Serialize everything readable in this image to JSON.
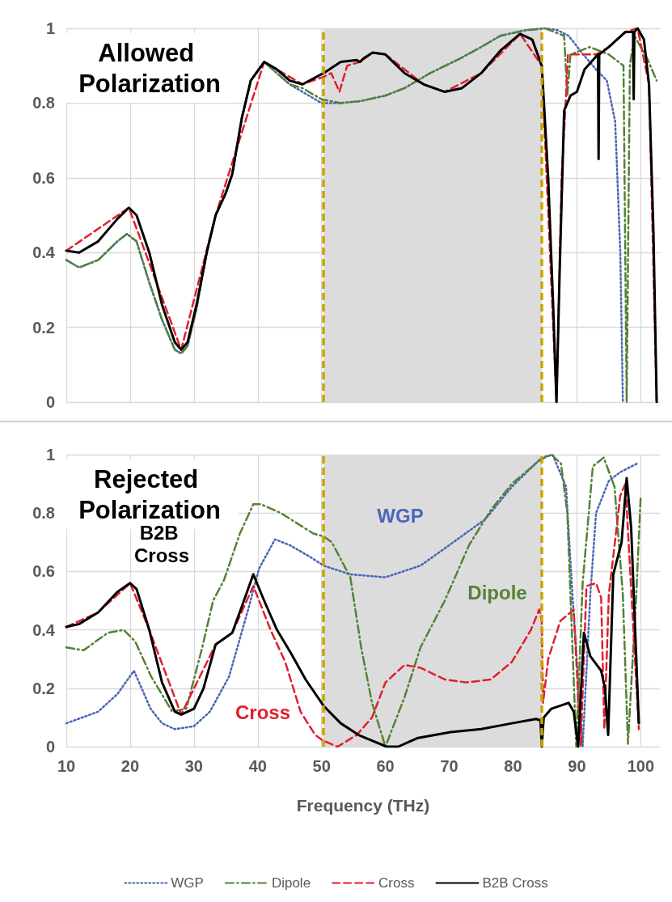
{
  "chart_data": [
    {
      "type": "line",
      "title": "Allowed Polarization",
      "xlim": [
        10,
        103
      ],
      "xticks": [
        10,
        20,
        30,
        40,
        50,
        60,
        70,
        80,
        90,
        100
      ],
      "ylim": [
        0,
        1
      ],
      "yticks": [
        0,
        0.2,
        0.4,
        0.6,
        0.8,
        1
      ],
      "tick_labels": "y",
      "grid": true,
      "legend": false,
      "marker": "none",
      "bands": [
        {
          "axis": "x",
          "from": 50.3,
          "to": 84.5,
          "color": "#dcdcdc"
        }
      ],
      "ref_lines": [
        {
          "axis": "x",
          "value": 50.3,
          "color": "#c9a400",
          "line_style": "dashed"
        },
        {
          "axis": "x",
          "value": 84.5,
          "color": "#c9a400",
          "line_style": "dashed"
        }
      ],
      "series": [
        {
          "name": "WGP",
          "color": "#4a66b8",
          "line_style": "dotted",
          "x": [
            10,
            12,
            15,
            18,
            19.5,
            21,
            23,
            25,
            27,
            28,
            29,
            30.4,
            32,
            33.4,
            35,
            36,
            37.5,
            38.9,
            41,
            43,
            45,
            47,
            50,
            53,
            56,
            60,
            63,
            67,
            71.8,
            75,
            78,
            82,
            85,
            87,
            88.7,
            91,
            93,
            94.7,
            96,
            96.8,
            97.2
          ],
          "values": [
            0.38,
            0.36,
            0.38,
            0.43,
            0.45,
            0.43,
            0.32,
            0.22,
            0.14,
            0.13,
            0.15,
            0.25,
            0.4,
            0.5,
            0.56,
            0.61,
            0.76,
            0.86,
            0.91,
            0.88,
            0.85,
            0.83,
            0.8,
            0.8,
            0.805,
            0.82,
            0.84,
            0.88,
            0.92,
            0.95,
            0.98,
            0.995,
            1.0,
            0.995,
            0.98,
            0.93,
            0.89,
            0.86,
            0.75,
            0.4,
            0
          ]
        },
        {
          "name": "Dipole",
          "color": "#548235",
          "line_style": "dashdot",
          "x": [
            10,
            12,
            15,
            18,
            19.5,
            21,
            23,
            25,
            27,
            28,
            29,
            30.4,
            32,
            33.4,
            35,
            36,
            37.5,
            38.9,
            41,
            43,
            45,
            47,
            50,
            53,
            56,
            60,
            63,
            67,
            71.8,
            75,
            78,
            82,
            85,
            88,
            88.5,
            89,
            92,
            95,
            97.3,
            97.8,
            98.3,
            99,
            101,
            102.5
          ],
          "values": [
            0.38,
            0.36,
            0.38,
            0.43,
            0.45,
            0.43,
            0.32,
            0.22,
            0.14,
            0.13,
            0.15,
            0.25,
            0.4,
            0.5,
            0.56,
            0.61,
            0.76,
            0.86,
            0.91,
            0.88,
            0.85,
            0.84,
            0.81,
            0.8,
            0.805,
            0.82,
            0.84,
            0.88,
            0.92,
            0.95,
            0.98,
            0.995,
            1.0,
            0.98,
            0.82,
            0.93,
            0.95,
            0.93,
            0.9,
            0,
            0.9,
            0.98,
            0.92,
            0.86
          ]
        },
        {
          "name": "Cross",
          "color": "#e0202c",
          "line_style": "dashed",
          "x": [
            10,
            19.8,
            28,
            33.4,
            41,
            47,
            50.3,
            51.5,
            52.8,
            54,
            56,
            58,
            60,
            66,
            69.3,
            75,
            81.1,
            84.5,
            86.8,
            87.6,
            88.3,
            88.6,
            93,
            95,
            97.5,
            99.5,
            101.3,
            102.5
          ],
          "values": [
            0.405,
            0.52,
            0.14,
            0.5,
            0.91,
            0.85,
            0.87,
            0.88,
            0.83,
            0.9,
            0.91,
            0.935,
            0.93,
            0.85,
            0.83,
            0.88,
            0.985,
            0.9,
            0,
            0.6,
            0.82,
            0.93,
            0.93,
            0.95,
            0.99,
            1.0,
            0.85,
            0
          ]
        },
        {
          "name": "B2B Cross",
          "color": "#000000",
          "line_style": "solid",
          "x": [
            10,
            12,
            15,
            18,
            19.8,
            21,
            23,
            25,
            27,
            28,
            29,
            30.4,
            32,
            33.4,
            35,
            36,
            37.5,
            38.9,
            41,
            43,
            45,
            47,
            50.3,
            53,
            55.5,
            56,
            56.6,
            58,
            60,
            63,
            66,
            69.3,
            72,
            75,
            78,
            81.1,
            83,
            84.5,
            85.5,
            86.3,
            86.8,
            87.3,
            88,
            89,
            90,
            91.2,
            93.3,
            93.4,
            93.5,
            95,
            97.6,
            98.8,
            98.9,
            99,
            99.5,
            100.5,
            101.3,
            102,
            102.5
          ],
          "values": [
            0.405,
            0.4,
            0.43,
            0.49,
            0.52,
            0.5,
            0.4,
            0.26,
            0.16,
            0.14,
            0.16,
            0.26,
            0.4,
            0.5,
            0.56,
            0.61,
            0.76,
            0.86,
            0.91,
            0.89,
            0.86,
            0.85,
            0.88,
            0.91,
            0.915,
            0.91,
            0.92,
            0.935,
            0.93,
            0.88,
            0.85,
            0.83,
            0.84,
            0.88,
            0.94,
            0.985,
            0.97,
            0.9,
            0.6,
            0.25,
            0,
            0.35,
            0.78,
            0.82,
            0.83,
            0.89,
            0.93,
            0.65,
            0.93,
            0.95,
            0.99,
            0.99,
            0.81,
            0.99,
            1.0,
            0.97,
            0.85,
            0.45,
            0
          ]
        }
      ]
    },
    {
      "type": "line",
      "title": "Rejected Polarization",
      "xlabel": "Frequency (THz)",
      "xlim": [
        10,
        103
      ],
      "xticks": [
        10,
        20,
        30,
        40,
        50,
        60,
        70,
        80,
        90,
        100
      ],
      "ylim": [
        0,
        1
      ],
      "yticks": [
        0,
        0.2,
        0.4,
        0.6,
        0.8,
        1
      ],
      "grid": true,
      "legend": "bottom",
      "marker": "none",
      "bands": [
        {
          "axis": "x",
          "from": 50.3,
          "to": 84.5,
          "color": "#dcdcdc"
        }
      ],
      "ref_lines": [
        {
          "axis": "x",
          "value": 50.3,
          "color": "#c9a400",
          "line_style": "dashed"
        },
        {
          "axis": "x",
          "value": 84.5,
          "color": "#c9a400",
          "line_style": "dashed"
        }
      ],
      "series": [
        {
          "name": "WGP",
          "color": "#4a66b8",
          "line_style": "dotted",
          "x": [
            10,
            15,
            18,
            20.6,
            23.2,
            25,
            27,
            30,
            32.5,
            35.5,
            38.5,
            40.2,
            42.7,
            45,
            48.2,
            50.3,
            54.5,
            60,
            65.5,
            70,
            75.7,
            79.8,
            84.5,
            86.2,
            88.3,
            89.3,
            90.9,
            92.1,
            93,
            95,
            96.8,
            99.5
          ],
          "values": [
            0.08,
            0.12,
            0.18,
            0.26,
            0.13,
            0.08,
            0.06,
            0.07,
            0.12,
            0.24,
            0.47,
            0.61,
            0.71,
            0.69,
            0.65,
            0.62,
            0.59,
            0.58,
            0.62,
            0.69,
            0.78,
            0.89,
            0.99,
            1.0,
            0.89,
            0.52,
            0,
            0.52,
            0.8,
            0.91,
            0.94,
            0.97
          ]
        },
        {
          "name": "Dipole",
          "color": "#548235",
          "line_style": "dashdot",
          "x": [
            10,
            12.7,
            16.5,
            19,
            20.8,
            23.3,
            26.6,
            28.8,
            31.3,
            33,
            34.7,
            37.2,
            39.3,
            40.5,
            43.6,
            48.7,
            50.3,
            51.6,
            54.5,
            56.2,
            57.9,
            60,
            63,
            65.5,
            69.3,
            73.1,
            76.5,
            79.8,
            84.1,
            86,
            87.5,
            88.5,
            89.9,
            90.9,
            92.5,
            94.2,
            95.9,
            97.2,
            98,
            99.3,
            100
          ],
          "values": [
            0.34,
            0.33,
            0.39,
            0.4,
            0.36,
            0.24,
            0.12,
            0.13,
            0.34,
            0.5,
            0.57,
            0.73,
            0.83,
            0.83,
            0.8,
            0.73,
            0.72,
            0.7,
            0.58,
            0.34,
            0.15,
            0,
            0.17,
            0.34,
            0.5,
            0.69,
            0.81,
            0.9,
            0.98,
            1.0,
            0.97,
            0.8,
            0,
            0.56,
            0.96,
            0.99,
            0.89,
            0.52,
            0.01,
            0.52,
            0.86
          ]
        },
        {
          "name": "Cross",
          "color": "#e0202c",
          "line_style": "dashed",
          "x": [
            10,
            15,
            20,
            23,
            28,
            33.4,
            36,
            39.3,
            42,
            44.3,
            46.7,
            49,
            50.3,
            52.5,
            55.5,
            57.9,
            60,
            63,
            65.5,
            69.3,
            72.7,
            76.5,
            79.8,
            82.8,
            84.1,
            84.5,
            84.7,
            85.5,
            87.4,
            89.5,
            90.6,
            91.5,
            93,
            93.8,
            94.3,
            95,
            96.8,
            97.6,
            99.7
          ],
          "values": [
            0.41,
            0.46,
            0.56,
            0.4,
            0.11,
            0.35,
            0.39,
            0.55,
            0.4,
            0.29,
            0.12,
            0.04,
            0.02,
            0,
            0.04,
            0.1,
            0.22,
            0.28,
            0.27,
            0.23,
            0.22,
            0.23,
            0.29,
            0.4,
            0.47,
            0.43,
            0.15,
            0.3,
            0.43,
            0.47,
            0,
            0.55,
            0.56,
            0.51,
            0.06,
            0.52,
            0.86,
            0.9,
            0.06
          ]
        },
        {
          "name": "B2B Cross",
          "color": "#000000",
          "line_style": "solid",
          "x": [
            10,
            12,
            15,
            18,
            20,
            21,
            23,
            25,
            27,
            28,
            30,
            31.5,
            33.4,
            36,
            37.5,
            39.3,
            41,
            43,
            45.2,
            47.5,
            50.3,
            53,
            55.8,
            58,
            60.2,
            62,
            65.1,
            70.2,
            75,
            79.8,
            83.6,
            84.3,
            84.5,
            84.8,
            86,
            88.7,
            89.5,
            90.2,
            91.1,
            92.1,
            93.8,
            94.4,
            94.9,
            95.7,
            97,
            97.8,
            98.5,
            99.7
          ],
          "values": [
            0.41,
            0.42,
            0.46,
            0.53,
            0.56,
            0.54,
            0.4,
            0.22,
            0.12,
            0.11,
            0.13,
            0.2,
            0.35,
            0.39,
            0.48,
            0.59,
            0.5,
            0.4,
            0.32,
            0.23,
            0.14,
            0.08,
            0.04,
            0.02,
            0,
            0,
            0.03,
            0.05,
            0.06,
            0.08,
            0.095,
            0.09,
            0,
            0.1,
            0.13,
            0.15,
            0.12,
            0,
            0.39,
            0.31,
            0.26,
            0.2,
            0.04,
            0.59,
            0.7,
            0.92,
            0.75,
            0.08
          ]
        }
      ]
    }
  ]
}
